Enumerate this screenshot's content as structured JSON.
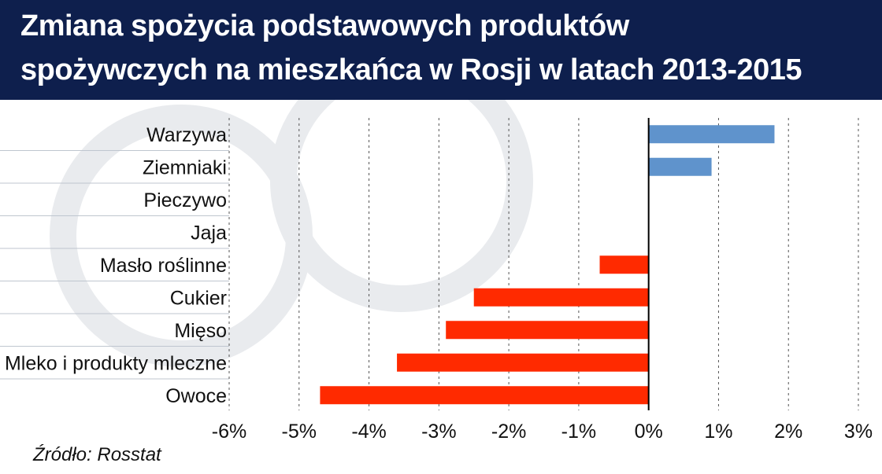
{
  "header": {
    "title_line1": "Zmiana spożycia podstawowych produktów",
    "title_line2": "spożywczych na mieszkańca w Rosji w latach 2013-2015"
  },
  "source": "Źródło: Rosstat",
  "colors": {
    "title_bg": "#0e1f4d",
    "positive": "#5f93cc",
    "negative": "#ff2a00",
    "gridline": "#555555",
    "zero_axis": "#000000"
  },
  "chart_data": {
    "type": "bar",
    "orientation": "horizontal",
    "title": "Zmiana spożycia podstawowych produktów spożywczych na mieszkańca w Rosji w latach 2013-2015",
    "categories": [
      "Warzywa",
      "Ziemniaki",
      "Pieczywo",
      "Jaja",
      "Masło roślinne",
      "Cukier",
      "Mięso",
      "Mleko i produkty mleczne",
      "Owoce"
    ],
    "values": [
      1.8,
      0.9,
      0.0,
      0.0,
      -0.7,
      -2.5,
      -2.9,
      -3.6,
      -4.7
    ],
    "unit": "%",
    "xlim": [
      -6,
      3
    ],
    "x_ticks": [
      -6,
      -5,
      -4,
      -3,
      -2,
      -1,
      0,
      1,
      2,
      3
    ],
    "x_tick_labels": [
      "-6%",
      "-5%",
      "-4%",
      "-3%",
      "-2%",
      "-1%",
      "0%",
      "1%",
      "2%",
      "3%"
    ],
    "grid": "vertical dashed",
    "legend": "none"
  }
}
